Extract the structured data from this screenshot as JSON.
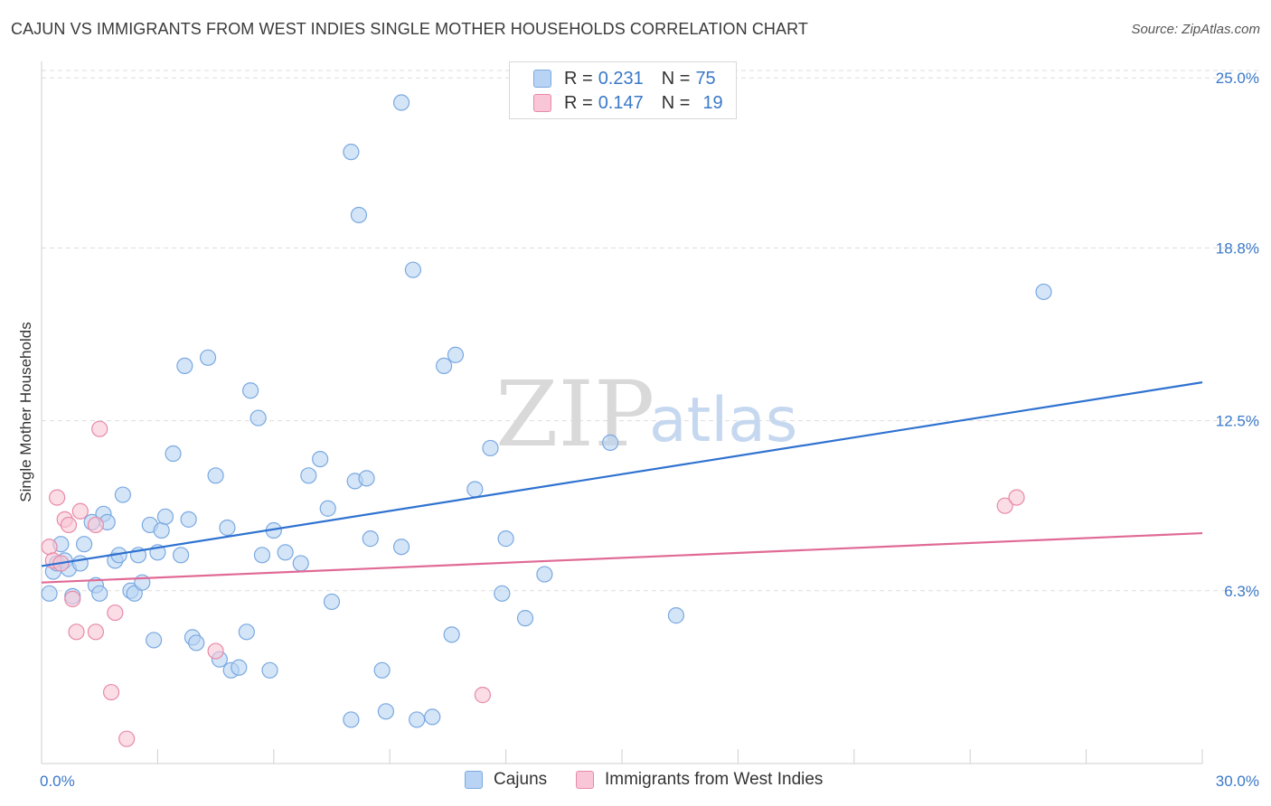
{
  "header": {
    "title": "CAJUN VS IMMIGRANTS FROM WEST INDIES SINGLE MOTHER HOUSEHOLDS CORRELATION CHART",
    "source": "Source: ZipAtlas.com"
  },
  "colors": {
    "cajun_fill": "#b8d3f4",
    "cajun_stroke": "#7aa9e0",
    "cajun_line": "#2f72d0",
    "west_indies_fill": "#f8c6d6",
    "west_indies_stroke": "#e88aa8",
    "west_indies_line": "#e06a95",
    "tick_label": "#3a78c9",
    "grid": "#dddddd"
  },
  "legend": {
    "rows": [
      {
        "r_label": "R =",
        "r_value": "0.231",
        "n_label": "N =",
        "n_value": "75"
      },
      {
        "r_label": "R =",
        "r_value": "0.147",
        "n_label": "N =",
        "n_value": "19"
      }
    ]
  },
  "watermark": {
    "zip": "ZIP",
    "atlas": "atlas"
  },
  "chart_data": {
    "type": "scatter",
    "title": "CAJUN VS IMMIGRANTS FROM WEST INDIES SINGLE MOTHER HOUSEHOLDS CORRELATION CHART",
    "xlabel": "",
    "ylabel": "Single Mother Households",
    "xlim": [
      0,
      30
    ],
    "ylim": [
      0,
      25.6
    ],
    "x_tick_labels": [
      "0.0%",
      "30.0%"
    ],
    "y_ticks": [
      6.3,
      12.5,
      18.8,
      25.0
    ],
    "y_tick_labels": [
      "6.3%",
      "12.5%",
      "18.8%",
      "25.0%"
    ],
    "series": [
      {
        "name": "Cajuns",
        "r": 0.231,
        "n": 75,
        "trend": {
          "x": [
            0,
            30
          ],
          "y": [
            7.2,
            13.9
          ]
        },
        "points": [
          [
            0.2,
            6.2
          ],
          [
            0.3,
            7.0
          ],
          [
            0.4,
            7.3
          ],
          [
            0.5,
            8.0
          ],
          [
            0.6,
            7.4
          ],
          [
            0.7,
            7.1
          ],
          [
            0.8,
            6.1
          ],
          [
            1.0,
            7.3
          ],
          [
            1.1,
            8.0
          ],
          [
            1.3,
            8.8
          ],
          [
            1.4,
            6.5
          ],
          [
            1.5,
            6.2
          ],
          [
            1.6,
            9.1
          ],
          [
            1.7,
            8.8
          ],
          [
            1.9,
            7.4
          ],
          [
            2.0,
            7.6
          ],
          [
            2.1,
            9.8
          ],
          [
            2.3,
            6.3
          ],
          [
            2.4,
            6.2
          ],
          [
            2.5,
            7.6
          ],
          [
            2.6,
            6.6
          ],
          [
            2.8,
            8.7
          ],
          [
            2.9,
            4.5
          ],
          [
            3.0,
            7.7
          ],
          [
            3.1,
            8.5
          ],
          [
            3.2,
            9.0
          ],
          [
            3.4,
            11.3
          ],
          [
            3.6,
            7.6
          ],
          [
            3.7,
            14.5
          ],
          [
            3.8,
            8.9
          ],
          [
            3.9,
            4.6
          ],
          [
            4.0,
            4.4
          ],
          [
            4.3,
            14.8
          ],
          [
            4.5,
            10.5
          ],
          [
            4.6,
            3.8
          ],
          [
            4.8,
            8.6
          ],
          [
            4.9,
            3.4
          ],
          [
            5.1,
            3.5
          ],
          [
            5.3,
            4.8
          ],
          [
            5.4,
            13.6
          ],
          [
            5.6,
            12.6
          ],
          [
            5.7,
            7.6
          ],
          [
            5.9,
            3.4
          ],
          [
            6.0,
            8.5
          ],
          [
            6.3,
            7.7
          ],
          [
            6.7,
            7.3
          ],
          [
            6.9,
            10.5
          ],
          [
            7.2,
            11.1
          ],
          [
            7.4,
            9.3
          ],
          [
            7.5,
            5.9
          ],
          [
            8.0,
            1.6
          ],
          [
            8.0,
            22.3
          ],
          [
            8.1,
            10.3
          ],
          [
            8.2,
            20.0
          ],
          [
            8.4,
            10.4
          ],
          [
            8.5,
            8.2
          ],
          [
            8.8,
            3.4
          ],
          [
            8.9,
            1.9
          ],
          [
            9.3,
            7.9
          ],
          [
            9.3,
            24.1
          ],
          [
            9.6,
            18.0
          ],
          [
            9.7,
            1.6
          ],
          [
            10.1,
            1.7
          ],
          [
            10.4,
            14.5
          ],
          [
            10.6,
            4.7
          ],
          [
            10.7,
            14.9
          ],
          [
            11.2,
            10.0
          ],
          [
            11.6,
            11.5
          ],
          [
            11.9,
            6.2
          ],
          [
            12.0,
            8.2
          ],
          [
            12.5,
            5.3
          ],
          [
            13.0,
            6.9
          ],
          [
            14.7,
            11.7
          ],
          [
            16.4,
            5.4
          ],
          [
            25.9,
            17.2
          ]
        ]
      },
      {
        "name": "Immigrants from West Indies",
        "r": 0.147,
        "n": 19,
        "trend": {
          "x": [
            0,
            30
          ],
          "y": [
            6.6,
            8.4
          ]
        },
        "points": [
          [
            0.2,
            7.9
          ],
          [
            0.3,
            7.4
          ],
          [
            0.4,
            9.7
          ],
          [
            0.5,
            7.3
          ],
          [
            0.6,
            8.9
          ],
          [
            0.7,
            8.7
          ],
          [
            0.8,
            6.0
          ],
          [
            0.9,
            4.8
          ],
          [
            1.0,
            9.2
          ],
          [
            1.4,
            8.7
          ],
          [
            1.4,
            4.8
          ],
          [
            1.5,
            12.2
          ],
          [
            1.8,
            2.6
          ],
          [
            1.9,
            5.5
          ],
          [
            2.2,
            0.9
          ],
          [
            4.5,
            4.1
          ],
          [
            11.4,
            2.5
          ],
          [
            24.9,
            9.4
          ],
          [
            25.2,
            9.7
          ]
        ]
      }
    ]
  }
}
